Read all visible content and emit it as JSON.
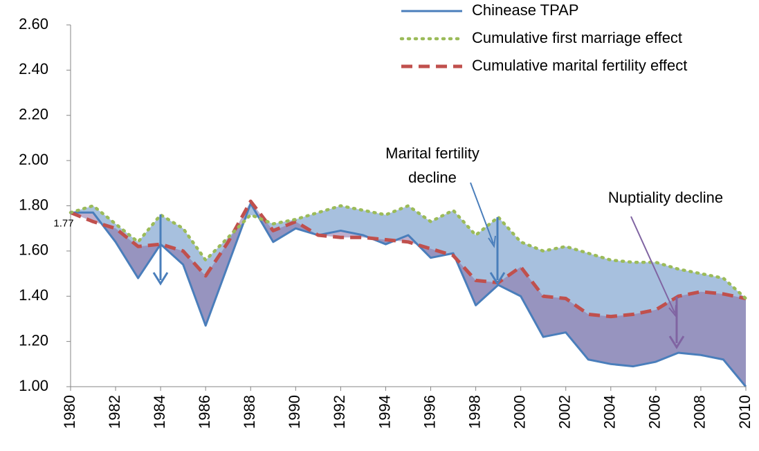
{
  "chart_data": {
    "type": "line",
    "x": [
      1980,
      1981,
      1982,
      1983,
      1984,
      1985,
      1986,
      1987,
      1988,
      1989,
      1990,
      1991,
      1992,
      1993,
      1994,
      1995,
      1996,
      1997,
      1998,
      1999,
      2000,
      2001,
      2002,
      2003,
      2004,
      2005,
      2006,
      2007,
      2008,
      2009,
      2010
    ],
    "xlim": [
      1980,
      2010
    ],
    "xticks": [
      1980,
      1982,
      1984,
      1986,
      1988,
      1990,
      1992,
      1994,
      1996,
      1998,
      2000,
      2002,
      2004,
      2006,
      2008,
      2010
    ],
    "ylim": [
      1.0,
      2.6
    ],
    "yticks": [
      {
        "value": 1.0,
        "label": "1.00"
      },
      {
        "value": 1.2,
        "label": "1.20"
      },
      {
        "value": 1.4,
        "label": "1.40"
      },
      {
        "value": 1.6,
        "label": "1.60"
      },
      {
        "value": 1.8,
        "label": "1.80"
      },
      {
        "value": 2.0,
        "label": "2.00"
      },
      {
        "value": 2.2,
        "label": "2.20"
      },
      {
        "value": 2.4,
        "label": "2.40"
      },
      {
        "value": 2.6,
        "label": "2.60"
      }
    ],
    "series": [
      {
        "name": "Chinease TPAP",
        "color": "#4a7ebb",
        "style": "solid",
        "values": [
          1.77,
          1.77,
          1.64,
          1.48,
          1.63,
          1.54,
          1.27,
          1.54,
          1.81,
          1.64,
          1.7,
          1.67,
          1.69,
          1.67,
          1.63,
          1.67,
          1.57,
          1.59,
          1.36,
          1.45,
          1.4,
          1.22,
          1.24,
          1.12,
          1.1,
          1.09,
          1.11,
          1.15,
          1.14,
          1.12,
          1.0
        ]
      },
      {
        "name": "Cumulative first marriage effect",
        "color": "#9bbb59",
        "style": "dotted",
        "values": [
          1.77,
          1.8,
          1.72,
          1.64,
          1.76,
          1.7,
          1.56,
          1.66,
          1.76,
          1.72,
          1.74,
          1.77,
          1.8,
          1.78,
          1.76,
          1.8,
          1.73,
          1.78,
          1.67,
          1.75,
          1.64,
          1.6,
          1.62,
          1.59,
          1.56,
          1.55,
          1.55,
          1.52,
          1.5,
          1.48,
          1.39
        ]
      },
      {
        "name": "Cumulative marital fertility effect",
        "color": "#c0504d",
        "style": "dashed",
        "values": [
          1.77,
          1.73,
          1.7,
          1.62,
          1.63,
          1.6,
          1.49,
          1.64,
          1.82,
          1.69,
          1.73,
          1.67,
          1.66,
          1.66,
          1.65,
          1.64,
          1.61,
          1.58,
          1.47,
          1.46,
          1.53,
          1.4,
          1.39,
          1.32,
          1.31,
          1.32,
          1.34,
          1.4,
          1.42,
          1.41,
          1.39
        ]
      }
    ],
    "annotations": [
      {
        "lines": [
          "Marital fertility",
          "decline"
        ]
      },
      {
        "lines": [
          "Nuptiality decline"
        ]
      }
    ]
  }
}
